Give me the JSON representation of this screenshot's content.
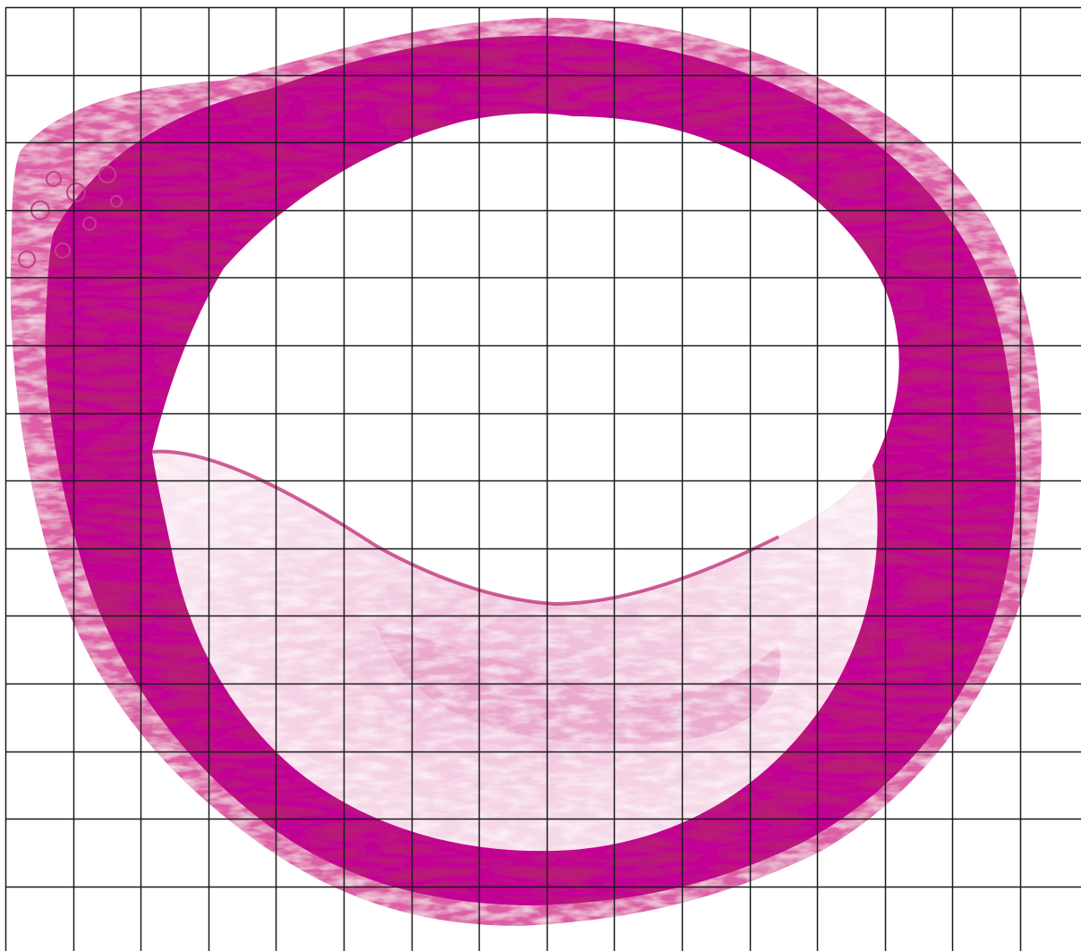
{
  "image": {
    "subject": "histology-section-vessel",
    "stain_colors": {
      "dark": "#b0136e",
      "mid": "#cf3f92",
      "light": "#ecb2d3",
      "pale": "#f7dcea"
    },
    "background_color": "#ffffff"
  },
  "grid_overlay": {
    "line_color": "#1a1a1a",
    "columns": 16,
    "rows": 14
  }
}
